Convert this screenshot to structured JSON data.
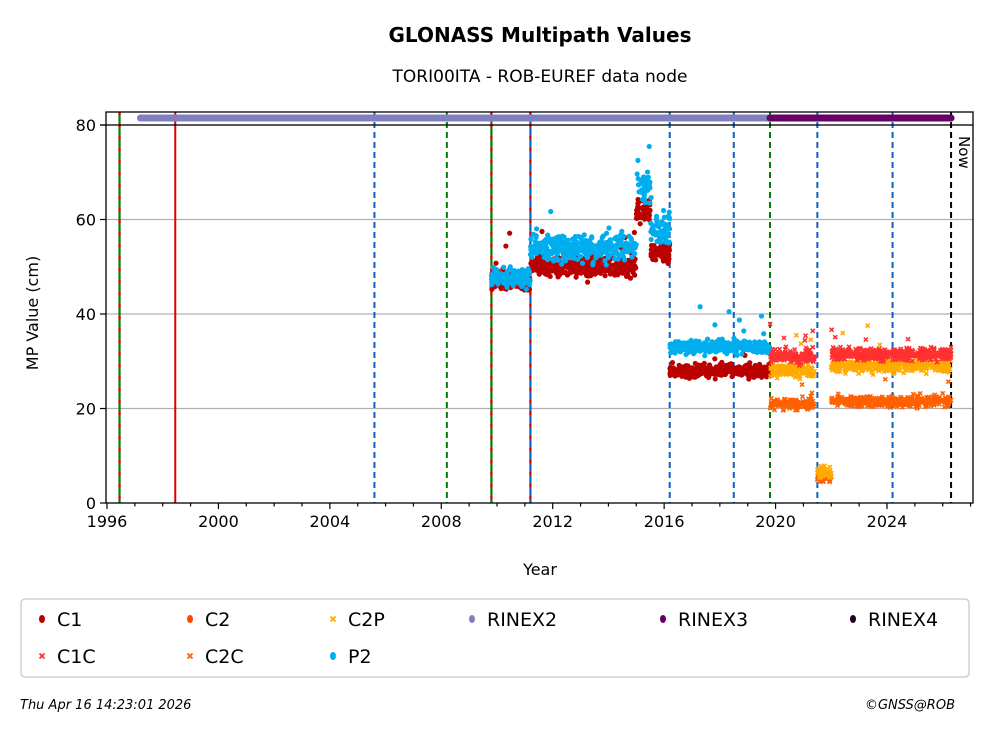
{
  "chart_data": {
    "type": "scatter",
    "title": "GLONASS Multipath Values",
    "subtitle": "TORI00ITA - ROB-EUREF data node",
    "xlabel": "Year",
    "ylabel": "MP Value (cm)",
    "xlim": [
      1995.97,
      2027.3
    ],
    "ylim": [
      0,
      82.5
    ],
    "xticks": [
      "1996",
      "2000",
      "2004",
      "2008",
      "2012",
      "2016",
      "2020",
      "2024"
    ],
    "yticks": [
      "0",
      "20",
      "40",
      "60",
      "80"
    ],
    "grid": "horizontal",
    "now_label": "Now",
    "now_year": 2026.3,
    "event_lines": [
      {
        "year": 1996.45,
        "colors": [
          "#008000",
          "#dd0000"
        ],
        "style": "solid"
      },
      {
        "year": 1998.45,
        "colors": [
          "#dd0000"
        ],
        "style": "solid"
      },
      {
        "year": 2005.6,
        "colors": [
          "#1060c0"
        ],
        "style": "dashed"
      },
      {
        "year": 2008.2,
        "colors": [
          "#008000"
        ],
        "style": "dashed"
      },
      {
        "year": 2009.8,
        "colors": [
          "#008000",
          "#dd0000"
        ],
        "style": "solid"
      },
      {
        "year": 2011.2,
        "colors": [
          "#1060c0",
          "#dd0000"
        ],
        "style": "solid"
      },
      {
        "year": 2016.2,
        "colors": [
          "#1060c0"
        ],
        "style": "dashed"
      },
      {
        "year": 2018.5,
        "colors": [
          "#1060c0"
        ],
        "style": "dashed"
      },
      {
        "year": 2019.8,
        "colors": [
          "#008000"
        ],
        "style": "dashed"
      },
      {
        "year": 2021.5,
        "colors": [
          "#1060c0"
        ],
        "style": "dashed"
      },
      {
        "year": 2024.2,
        "colors": [
          "#1060c0"
        ],
        "style": "dashed"
      }
    ],
    "rinex_bars": [
      {
        "name": "RINEX2",
        "from": 1997.2,
        "to": 2019.8,
        "color": "#8080c0"
      },
      {
        "name": "RINEX3",
        "from": 2019.8,
        "to": 2026.3,
        "color": "#660066"
      }
    ],
    "series": [
      {
        "name": "C1",
        "color": "#bb0000",
        "marker": "dot",
        "segments": [
          {
            "from": 2009.8,
            "to": 2011.2,
            "mean": 47,
            "spread": 1.5
          },
          {
            "from": 2011.2,
            "to": 2015.0,
            "mean": 50,
            "spread": 1.6
          },
          {
            "from": 2015.0,
            "to": 2015.5,
            "mean": 62,
            "spread": 2.0
          },
          {
            "from": 2015.5,
            "to": 2016.2,
            "mean": 53,
            "spread": 1.5
          },
          {
            "from": 2016.2,
            "to": 2019.8,
            "mean": 28,
            "spread": 1.0
          }
        ]
      },
      {
        "name": "C2",
        "color": "#ff4500",
        "marker": "dot",
        "segments": []
      },
      {
        "name": "C2P",
        "color": "#ffaa00",
        "marker": "x",
        "segments": [
          {
            "from": 2019.8,
            "to": 2021.4,
            "mean": 28,
            "spread": 1.0
          },
          {
            "from": 2021.5,
            "to": 2022.0,
            "mean": 6.5,
            "spread": 1.0
          },
          {
            "from": 2022.0,
            "to": 2026.3,
            "mean": 29,
            "spread": 1.0
          }
        ]
      },
      {
        "name": "P2",
        "color": "#00aeef",
        "marker": "dot",
        "segments": [
          {
            "from": 2009.8,
            "to": 2011.2,
            "mean": 48,
            "spread": 1.6
          },
          {
            "from": 2011.2,
            "to": 2015.0,
            "mean": 54,
            "spread": 2.0
          },
          {
            "from": 2015.0,
            "to": 2015.5,
            "mean": 67,
            "spread": 3.0
          },
          {
            "from": 2015.5,
            "to": 2016.2,
            "mean": 58,
            "spread": 2.0
          },
          {
            "from": 2016.2,
            "to": 2019.8,
            "mean": 33,
            "spread": 1.0
          }
        ]
      },
      {
        "name": "C1C",
        "color": "#ff3030",
        "marker": "x",
        "segments": [
          {
            "from": 2019.8,
            "to": 2021.4,
            "mean": 31,
            "spread": 1.0
          },
          {
            "from": 2022.0,
            "to": 2026.3,
            "mean": 31.5,
            "spread": 1.0
          }
        ]
      },
      {
        "name": "C2C",
        "color": "#ff6000",
        "marker": "x",
        "segments": [
          {
            "from": 2019.8,
            "to": 2021.4,
            "mean": 21,
            "spread": 0.8
          },
          {
            "from": 2021.5,
            "to": 2022.0,
            "mean": 5.5,
            "spread": 0.8
          },
          {
            "from": 2022.0,
            "to": 2026.3,
            "mean": 21.5,
            "spread": 0.8
          }
        ]
      }
    ],
    "legend": {
      "placement": "bottom",
      "entries": [
        {
          "label": "C1",
          "color": "#bb0000",
          "marker": "dot"
        },
        {
          "label": "C2",
          "color": "#ff4500",
          "marker": "dot"
        },
        {
          "label": "C2P",
          "color": "#ffaa00",
          "marker": "x"
        },
        {
          "label": "RINEX2",
          "color": "#8080c0",
          "marker": "dot"
        },
        {
          "label": "RINEX3",
          "color": "#660066",
          "marker": "dot"
        },
        {
          "label": "RINEX4",
          "color": "#220022",
          "marker": "dot"
        },
        {
          "label": "C1C",
          "color": "#ff3030",
          "marker": "x"
        },
        {
          "label": "C2C",
          "color": "#ff6000",
          "marker": "x"
        },
        {
          "label": "P2",
          "color": "#00aeef",
          "marker": "dot"
        }
      ]
    }
  },
  "footer": {
    "timestamp": "Thu Apr 16 14:23:01 2026",
    "copyright": "©GNSS@ROB"
  }
}
